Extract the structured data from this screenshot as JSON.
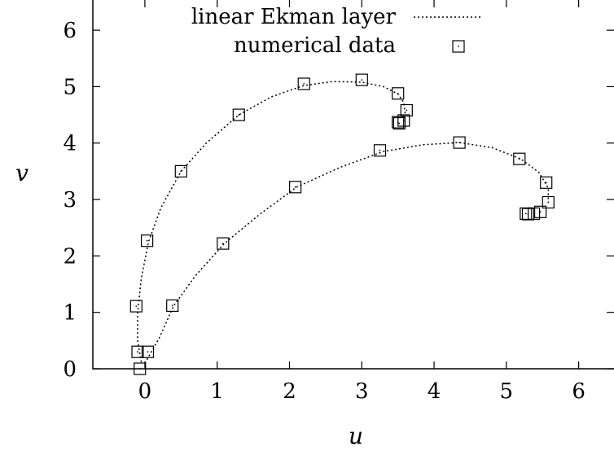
{
  "chart_data": {
    "type": "scatter",
    "title": "",
    "xlabel": "u",
    "ylabel": "v",
    "xlim": [
      -0.72,
      6.5
    ],
    "ylim": [
      0,
      6.55
    ],
    "xticks": [
      0,
      1,
      2,
      3,
      4,
      5,
      6
    ],
    "yticks": [
      0,
      1,
      2,
      3,
      4,
      5,
      6
    ],
    "grid": false,
    "legend_position": "top-center",
    "series": [
      {
        "name": "linear Ekman layer",
        "style": "dotted-line",
        "curves": [
          [
            [
              -0.05,
              0.12
            ],
            [
              -0.1,
              0.5
            ],
            [
              -0.1,
              1.0
            ],
            [
              -0.05,
              1.6
            ],
            [
              0.05,
              2.25
            ],
            [
              0.22,
              2.85
            ],
            [
              0.5,
              3.5
            ],
            [
              0.85,
              4.0
            ],
            [
              1.3,
              4.5
            ],
            [
              1.75,
              4.82
            ],
            [
              2.2,
              5.02
            ],
            [
              2.6,
              5.09
            ],
            [
              3.0,
              5.08
            ],
            [
              3.3,
              5.0
            ],
            [
              3.5,
              4.87
            ],
            [
              3.58,
              4.72
            ],
            [
              3.6,
              4.52
            ],
            [
              3.58,
              4.4
            ]
          ],
          [
            [
              0.0,
              0.1
            ],
            [
              0.2,
              0.55
            ],
            [
              0.4,
              1.12
            ],
            [
              0.7,
              1.65
            ],
            [
              1.1,
              2.22
            ],
            [
              1.6,
              2.75
            ],
            [
              2.1,
              3.22
            ],
            [
              2.7,
              3.57
            ],
            [
              3.3,
              3.85
            ],
            [
              3.85,
              3.97
            ],
            [
              4.35,
              4.01
            ],
            [
              4.8,
              3.92
            ],
            [
              5.2,
              3.72
            ],
            [
              5.45,
              3.48
            ],
            [
              5.58,
              3.2
            ],
            [
              5.58,
              2.95
            ]
          ]
        ]
      },
      {
        "name": "numerical data",
        "style": "open-square",
        "points": [
          [
            -0.07,
            0.0
          ],
          [
            -0.1,
            0.3
          ],
          [
            0.04,
            0.3
          ],
          [
            -0.12,
            1.11
          ],
          [
            0.03,
            2.27
          ],
          [
            0.5,
            3.5
          ],
          [
            1.3,
            4.5
          ],
          [
            2.2,
            5.05
          ],
          [
            3.0,
            5.12
          ],
          [
            3.5,
            4.88
          ],
          [
            3.62,
            4.58
          ],
          [
            3.58,
            4.4
          ],
          [
            3.52,
            4.35
          ],
          [
            3.5,
            4.37
          ],
          [
            0.38,
            1.12
          ],
          [
            1.08,
            2.22
          ],
          [
            2.08,
            3.22
          ],
          [
            3.25,
            3.87
          ],
          [
            4.35,
            4.01
          ],
          [
            5.18,
            3.72
          ],
          [
            5.55,
            3.3
          ],
          [
            5.58,
            2.95
          ],
          [
            5.47,
            2.78
          ],
          [
            5.38,
            2.75
          ],
          [
            5.3,
            2.74
          ],
          [
            5.27,
            2.75
          ]
        ]
      }
    ]
  }
}
